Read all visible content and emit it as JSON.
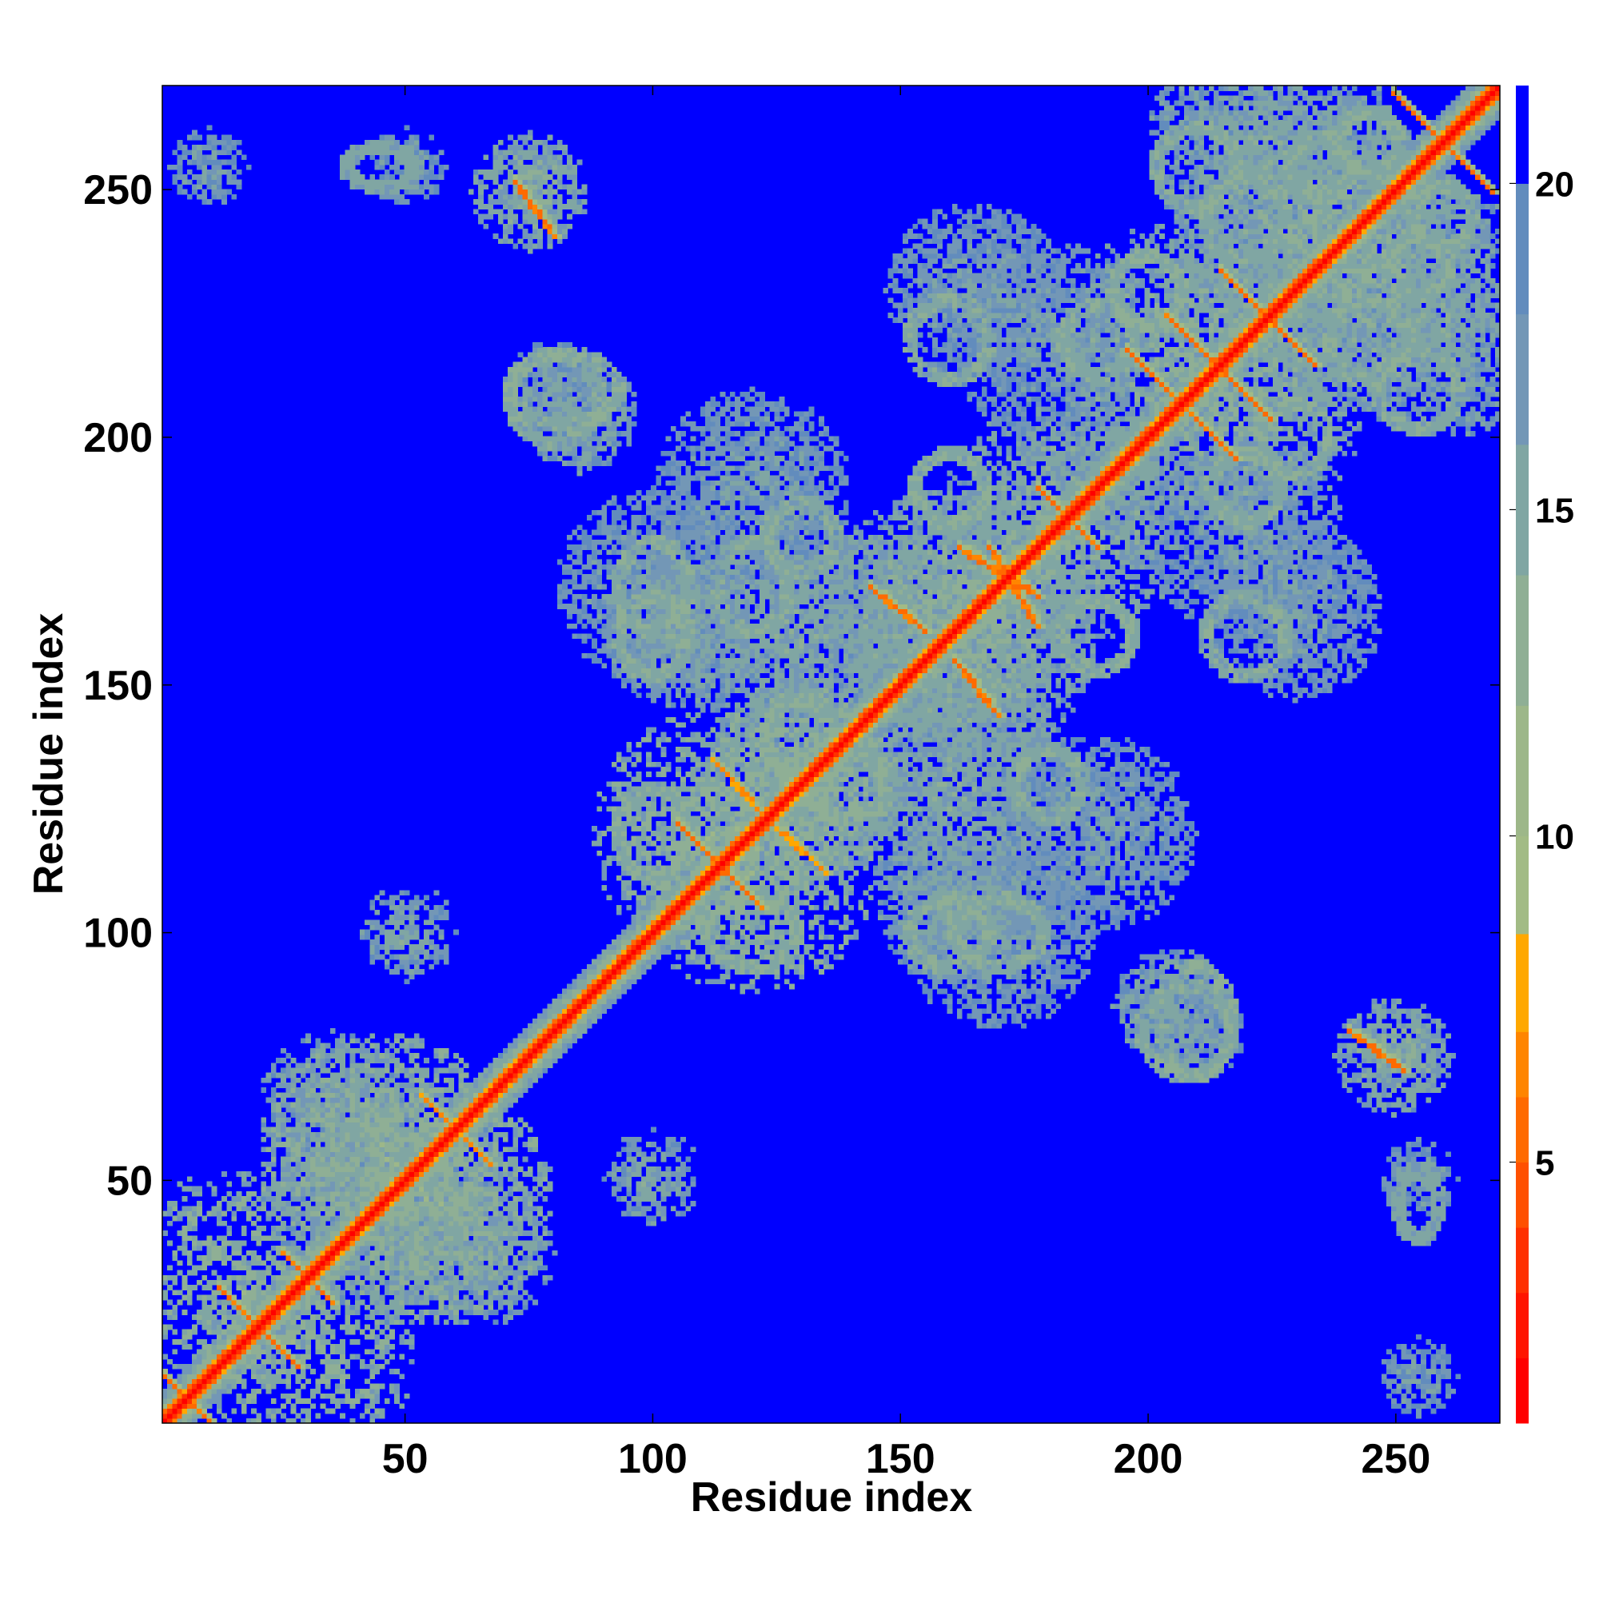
{
  "chart_data": {
    "type": "heatmap",
    "title": "",
    "xlabel": "Residue index",
    "ylabel": "Residue index",
    "n_residues": 271,
    "xlim": [
      1,
      271
    ],
    "ylim": [
      1,
      271
    ],
    "x_ticks": [
      50,
      100,
      150,
      200,
      250
    ],
    "y_ticks": [
      50,
      100,
      150,
      200,
      250
    ],
    "x_tick_labels": [
      "50",
      "100",
      "150",
      "200",
      "250"
    ],
    "y_tick_labels": [
      "50",
      "100",
      "150",
      "200",
      "250"
    ],
    "colorbar": {
      "range": [
        1,
        21.5
      ],
      "ticks": [
        5,
        10,
        15,
        20
      ],
      "tick_labels": [
        "5",
        "10",
        "15",
        "20"
      ],
      "levels": [
        {
          "from": 1.0,
          "to": 2.0,
          "color": "#ff0000"
        },
        {
          "from": 2.0,
          "to": 3.0,
          "color": "#ff1500"
        },
        {
          "from": 3.0,
          "to": 4.0,
          "color": "#ff3000"
        },
        {
          "from": 4.0,
          "to": 5.0,
          "color": "#ff5000"
        },
        {
          "from": 5.0,
          "to": 6.0,
          "color": "#ff6a00"
        },
        {
          "from": 6.0,
          "to": 7.0,
          "color": "#ff8500"
        },
        {
          "from": 7.0,
          "to": 8.5,
          "color": "#ffa800"
        },
        {
          "from": 8.5,
          "to": 10.0,
          "color": "#a2bb85"
        },
        {
          "from": 10.0,
          "to": 12.0,
          "color": "#9db789"
        },
        {
          "from": 12.0,
          "to": 14.0,
          "color": "#8faf95"
        },
        {
          "from": 14.0,
          "to": 16.0,
          "color": "#80a6a3"
        },
        {
          "from": 16.0,
          "to": 18.0,
          "color": "#7397b6"
        },
        {
          "from": 18.0,
          "to": 20.0,
          "color": "#628cbd"
        },
        {
          "from": 20.0,
          "to": 21.5,
          "color": "#0000ff"
        }
      ],
      "out_of_range_color": "#0000ff"
    },
    "background_value": 21.5,
    "diagonal": [
      {
        "from": 1,
        "to": 271,
        "width": 1.0
      }
    ],
    "contact_segments": [
      {
        "x1": 1,
        "y1": 10,
        "x2": 10,
        "y2": 1,
        "value": 6
      },
      {
        "x1": 12,
        "y1": 28,
        "x2": 28,
        "y2": 12,
        "value": 6
      },
      {
        "x1": 25,
        "y1": 35,
        "x2": 35,
        "y2": 25,
        "value": 6
      },
      {
        "x1": 53,
        "y1": 67,
        "x2": 67,
        "y2": 53,
        "value": 7
      },
      {
        "x1": 72,
        "y1": 252,
        "x2": 80,
        "y2": 241,
        "value": 6
      },
      {
        "x1": 241,
        "y1": 80,
        "x2": 252,
        "y2": 72,
        "value": 6
      },
      {
        "x1": 105,
        "y1": 122,
        "x2": 122,
        "y2": 105,
        "value": 6
      },
      {
        "x1": 122,
        "y1": 124,
        "x2": 135,
        "y2": 112,
        "value": 7
      },
      {
        "x1": 144,
        "y1": 170,
        "x2": 155,
        "y2": 161,
        "value": 6
      },
      {
        "x1": 161,
        "y1": 155,
        "x2": 170,
        "y2": 144,
        "value": 6
      },
      {
        "x1": 168,
        "y1": 178,
        "x2": 178,
        "y2": 162,
        "value": 6
      },
      {
        "x1": 178,
        "y1": 190,
        "x2": 190,
        "y2": 178,
        "value": 6
      },
      {
        "x1": 196,
        "y1": 218,
        "x2": 218,
        "y2": 196,
        "value": 6
      },
      {
        "x1": 204,
        "y1": 225,
        "x2": 225,
        "y2": 204,
        "value": 6
      },
      {
        "x1": 215,
        "y1": 234,
        "x2": 234,
        "y2": 215,
        "value": 6
      },
      {
        "x1": 250,
        "y1": 270,
        "x2": 270,
        "y2": 250,
        "value": 6
      }
    ],
    "contact_blobs": [
      {
        "x": 15,
        "y": 30,
        "r": 22,
        "value": 13
      },
      {
        "x": 45,
        "y": 55,
        "r": 25,
        "value": 13
      },
      {
        "x": 60,
        "y": 40,
        "r": 18,
        "value": 14
      },
      {
        "x": 100,
        "y": 50,
        "r": 8,
        "value": 15
      },
      {
        "x": 50,
        "y": 100,
        "r": 10,
        "value": 15
      },
      {
        "x": 40,
        "y": 50,
        "r": 20,
        "value": 15
      },
      {
        "x": 65,
        "y": 35,
        "r": 15,
        "value": 15
      },
      {
        "x": 85,
        "y": 205,
        "r": 12,
        "value": 15
      },
      {
        "x": 205,
        "y": 85,
        "r": 12,
        "value": 15
      },
      {
        "x": 75,
        "y": 250,
        "r": 12,
        "value": 14
      },
      {
        "x": 250,
        "y": 75,
        "r": 12,
        "value": 14
      },
      {
        "x": 112,
        "y": 120,
        "r": 25,
        "value": 13
      },
      {
        "x": 130,
        "y": 130,
        "r": 20,
        "value": 13
      },
      {
        "x": 100,
        "y": 170,
        "r": 20,
        "value": 16
      },
      {
        "x": 170,
        "y": 100,
        "r": 20,
        "value": 16
      },
      {
        "x": 130,
        "y": 160,
        "r": 25,
        "value": 15
      },
      {
        "x": 160,
        "y": 130,
        "r": 25,
        "value": 15
      },
      {
        "x": 160,
        "y": 165,
        "r": 25,
        "value": 14
      },
      {
        "x": 165,
        "y": 160,
        "r": 25,
        "value": 14
      },
      {
        "x": 180,
        "y": 185,
        "r": 22,
        "value": 14
      },
      {
        "x": 160,
        "y": 105,
        "r": 15,
        "value": 15
      },
      {
        "x": 105,
        "y": 160,
        "r": 15,
        "value": 15
      },
      {
        "x": 210,
        "y": 215,
        "r": 30,
        "value": 14
      },
      {
        "x": 235,
        "y": 240,
        "r": 30,
        "value": 14
      },
      {
        "x": 225,
        "y": 260,
        "r": 25,
        "value": 15
      },
      {
        "x": 260,
        "y": 225,
        "r": 25,
        "value": 15
      },
      {
        "x": 180,
        "y": 220,
        "r": 20,
        "value": 16
      },
      {
        "x": 220,
        "y": 180,
        "r": 20,
        "value": 16
      },
      {
        "x": 190,
        "y": 120,
        "r": 20,
        "value": 16
      },
      {
        "x": 120,
        "y": 190,
        "r": 20,
        "value": 16
      },
      {
        "x": 230,
        "y": 165,
        "r": 18,
        "value": 16
      },
      {
        "x": 165,
        "y": 230,
        "r": 18,
        "value": 16
      },
      {
        "x": 210,
        "y": 80,
        "r": 10,
        "value": 16
      },
      {
        "x": 80,
        "y": 210,
        "r": 10,
        "value": 16
      },
      {
        "x": 255,
        "y": 10,
        "r": 8,
        "value": 16
      },
      {
        "x": 10,
        "y": 255,
        "r": 8,
        "value": 16
      },
      {
        "x": 255,
        "y": 50,
        "r": 8,
        "value": 16
      },
      {
        "x": 50,
        "y": 255,
        "r": 8,
        "value": 16
      }
    ],
    "contact_rings": [
      {
        "x": 80,
        "y": 208,
        "rx": 9,
        "ry": 9,
        "value": 15
      },
      {
        "x": 208,
        "y": 80,
        "rx": 9,
        "ry": 9,
        "value": 15
      },
      {
        "x": 100,
        "y": 170,
        "rx": 7,
        "ry": 9,
        "value": 15
      },
      {
        "x": 170,
        "y": 100,
        "rx": 9,
        "ry": 7,
        "value": 15
      },
      {
        "x": 120,
        "y": 170,
        "rx": 7,
        "ry": 9,
        "value": 15
      },
      {
        "x": 140,
        "y": 130,
        "rx": 7,
        "ry": 7,
        "value": 15
      },
      {
        "x": 130,
        "y": 140,
        "rx": 7,
        "ry": 7,
        "value": 15
      },
      {
        "x": 160,
        "y": 190,
        "rx": 7,
        "ry": 7,
        "value": 15
      },
      {
        "x": 190,
        "y": 160,
        "rx": 7,
        "ry": 7,
        "value": 15
      },
      {
        "x": 190,
        "y": 220,
        "rx": 7,
        "ry": 7,
        "value": 15
      },
      {
        "x": 220,
        "y": 190,
        "rx": 7,
        "ry": 7,
        "value": 15
      },
      {
        "x": 160,
        "y": 220,
        "rx": 8,
        "ry": 8,
        "value": 15
      },
      {
        "x": 220,
        "y": 160,
        "rx": 8,
        "ry": 8,
        "value": 15
      },
      {
        "x": 200,
        "y": 230,
        "rx": 7,
        "ry": 7,
        "value": 15
      },
      {
        "x": 230,
        "y": 200,
        "rx": 7,
        "ry": 7,
        "value": 15
      },
      {
        "x": 220,
        "y": 245,
        "rx": 8,
        "ry": 8,
        "value": 15
      },
      {
        "x": 245,
        "y": 220,
        "rx": 8,
        "ry": 8,
        "value": 15
      },
      {
        "x": 255,
        "y": 210,
        "rx": 8,
        "ry": 8,
        "value": 15
      },
      {
        "x": 210,
        "y": 255,
        "rx": 8,
        "ry": 8,
        "value": 15
      },
      {
        "x": 260,
        "y": 245,
        "rx": 6,
        "ry": 6,
        "value": 15
      },
      {
        "x": 245,
        "y": 260,
        "rx": 6,
        "ry": 6,
        "value": 15
      },
      {
        "x": 235,
        "y": 255,
        "rx": 6,
        "ry": 6,
        "value": 15
      },
      {
        "x": 255,
        "y": 235,
        "rx": 6,
        "ry": 6,
        "value": 15
      },
      {
        "x": 100,
        "y": 120,
        "rx": 7,
        "ry": 9,
        "value": 15
      },
      {
        "x": 120,
        "y": 100,
        "rx": 9,
        "ry": 7,
        "value": 15
      },
      {
        "x": 160,
        "y": 100,
        "rx": 8,
        "ry": 7,
        "value": 15
      },
      {
        "x": 100,
        "y": 160,
        "rx": 7,
        "ry": 8,
        "value": 15
      },
      {
        "x": 180,
        "y": 130,
        "rx": 7,
        "ry": 7,
        "value": 15
      },
      {
        "x": 130,
        "y": 180,
        "rx": 7,
        "ry": 7,
        "value": 15
      },
      {
        "x": 210,
        "y": 82,
        "rx": 7,
        "ry": 11,
        "value": 15
      },
      {
        "x": 82,
        "y": 210,
        "rx": 11,
        "ry": 7,
        "value": 15
      },
      {
        "x": 255,
        "y": 45,
        "rx": 4,
        "ry": 7,
        "value": 16
      },
      {
        "x": 45,
        "y": 255,
        "rx": 7,
        "ry": 4,
        "value": 16
      }
    ]
  }
}
